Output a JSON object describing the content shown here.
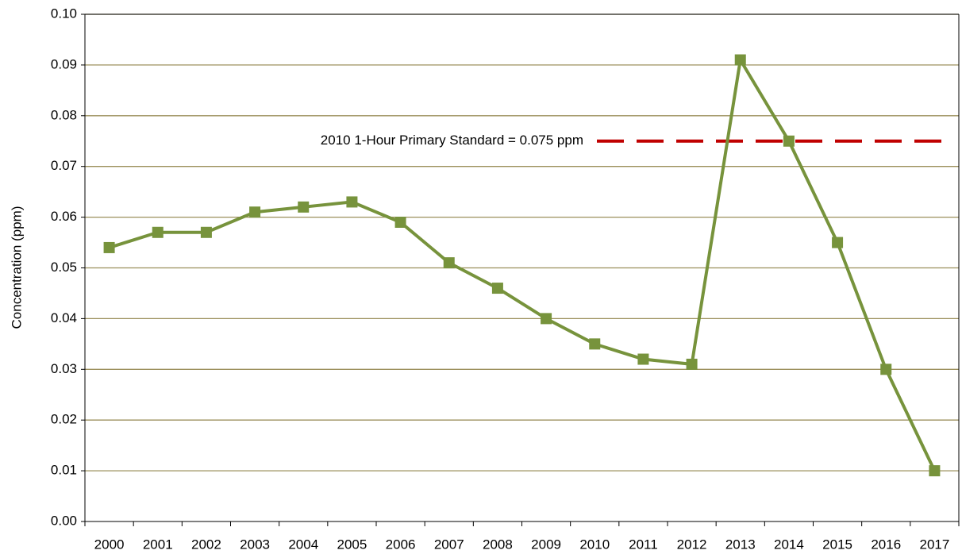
{
  "chart_data": {
    "type": "line",
    "y_label": "Concentration (ppm)",
    "categories": [
      "2000",
      "2001",
      "2002",
      "2003",
      "2004",
      "2005",
      "2006",
      "2007",
      "2008",
      "2009",
      "2010",
      "2011",
      "2012",
      "2013",
      "2014",
      "2015",
      "2016",
      "2017"
    ],
    "series": [
      {
        "name": "Concentration",
        "color": "#77933c",
        "values": [
          0.054,
          0.057,
          0.057,
          0.061,
          0.062,
          0.063,
          0.059,
          0.051,
          0.046,
          0.04,
          0.035,
          0.032,
          0.031,
          0.091,
          0.075,
          0.055,
          0.03,
          0.01
        ]
      }
    ],
    "ylim": [
      0,
      0.1
    ],
    "yticks": [
      {
        "value": 0,
        "label": "0.00"
      },
      0.01,
      0.02,
      0.03,
      0.04,
      0.05,
      0.06,
      0.07,
      0.08,
      0.09,
      {
        "value": 0.1,
        "label": "0.10"
      }
    ],
    "grid": true,
    "grid_color": "#9b8f5b",
    "reference_line": {
      "value": 0.075,
      "label": "2010 1-Hour Primary Standard = 0.075 ppm",
      "color": "#c00000"
    }
  }
}
